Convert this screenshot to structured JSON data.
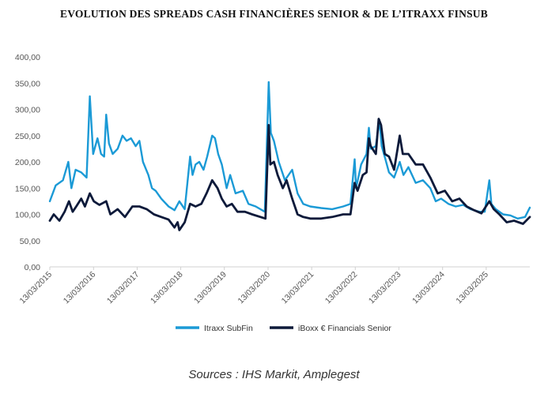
{
  "title": "EVOLUTION DES SPREADS CASH FINANCIÈRES SENIOR & DE L’ITRAXX FINSUB",
  "source": "Sources : IHS Markit, Amplegest",
  "colors": {
    "itraxx": "#1b9ad6",
    "iboxx": "#0d1a3a",
    "axis": "#d0d0d0",
    "tick_text": "#555555"
  },
  "chart_data": {
    "type": "line",
    "title": "EVOLUTION DES SPREADS CASH FINANCIÈRES SENIOR & DE L’ITRAXX FINSUB",
    "ylim": [
      0,
      400
    ],
    "y_ticks": [
      "0,00",
      "50,00",
      "100,00",
      "150,00",
      "200,00",
      "250,00",
      "300,00",
      "350,00",
      "400,00"
    ],
    "x_range": [
      "2015-03-13",
      "2026-03-13"
    ],
    "x_ticks": [
      "13/03/2015",
      "13/03/2016",
      "13/03/2017",
      "13/03/2018",
      "13/03/2019",
      "13/03/2020",
      "13/03/2021",
      "13/03/2022",
      "13/03/2023",
      "13/03/2024",
      "13/03/2025"
    ],
    "grid": false,
    "legend_position": "bottom",
    "series": [
      {
        "name": "Itraxx SubFin",
        "color": "#1b9ad6",
        "points": [
          [
            "2015-03-13",
            125
          ],
          [
            "2015-05-01",
            155
          ],
          [
            "2015-07-01",
            165
          ],
          [
            "2015-08-15",
            200
          ],
          [
            "2015-09-10",
            150
          ],
          [
            "2015-10-15",
            185
          ],
          [
            "2015-12-01",
            180
          ],
          [
            "2016-01-15",
            170
          ],
          [
            "2016-02-11",
            325
          ],
          [
            "2016-03-10",
            215
          ],
          [
            "2016-04-15",
            245
          ],
          [
            "2016-05-15",
            215
          ],
          [
            "2016-06-10",
            210
          ],
          [
            "2016-06-27",
            290
          ],
          [
            "2016-07-20",
            235
          ],
          [
            "2016-08-20",
            215
          ],
          [
            "2016-10-01",
            225
          ],
          [
            "2016-11-10",
            250
          ],
          [
            "2016-12-15",
            240
          ],
          [
            "2017-01-20",
            245
          ],
          [
            "2017-03-01",
            230
          ],
          [
            "2017-04-01",
            240
          ],
          [
            "2017-05-01",
            200
          ],
          [
            "2017-06-15",
            175
          ],
          [
            "2017-07-15",
            150
          ],
          [
            "2017-08-15",
            145
          ],
          [
            "2017-10-01",
            130
          ],
          [
            "2017-12-01",
            115
          ],
          [
            "2018-01-20",
            108
          ],
          [
            "2018-03-01",
            125
          ],
          [
            "2018-04-15",
            110
          ],
          [
            "2018-05-30",
            210
          ],
          [
            "2018-06-20",
            175
          ],
          [
            "2018-07-15",
            195
          ],
          [
            "2018-08-15",
            200
          ],
          [
            "2018-09-20",
            185
          ],
          [
            "2018-10-20",
            210
          ],
          [
            "2018-12-01",
            250
          ],
          [
            "2018-12-25",
            245
          ],
          [
            "2019-01-20",
            215
          ],
          [
            "2019-02-20",
            195
          ],
          [
            "2019-04-01",
            150
          ],
          [
            "2019-05-01",
            175
          ],
          [
            "2019-06-15",
            140
          ],
          [
            "2019-08-15",
            145
          ],
          [
            "2019-10-01",
            120
          ],
          [
            "2019-12-01",
            115
          ],
          [
            "2020-02-15",
            105
          ],
          [
            "2020-03-18",
            352
          ],
          [
            "2020-04-05",
            255
          ],
          [
            "2020-05-01",
            240
          ],
          [
            "2020-06-10",
            200
          ],
          [
            "2020-08-01",
            165
          ],
          [
            "2020-10-01",
            185
          ],
          [
            "2020-11-15",
            140
          ],
          [
            "2021-01-01",
            120
          ],
          [
            "2021-03-01",
            115
          ],
          [
            "2021-06-01",
            112
          ],
          [
            "2021-09-01",
            110
          ],
          [
            "2021-12-01",
            115
          ],
          [
            "2022-02-01",
            120
          ],
          [
            "2022-03-08",
            205
          ],
          [
            "2022-03-20",
            150
          ],
          [
            "2022-05-01",
            195
          ],
          [
            "2022-06-15",
            215
          ],
          [
            "2022-07-05",
            265
          ],
          [
            "2022-07-20",
            225
          ],
          [
            "2022-09-01",
            230
          ],
          [
            "2022-09-30",
            280
          ],
          [
            "2022-10-20",
            230
          ],
          [
            "2022-11-20",
            205
          ],
          [
            "2022-12-20",
            180
          ],
          [
            "2023-02-01",
            170
          ],
          [
            "2023-03-20",
            200
          ],
          [
            "2023-04-20",
            175
          ],
          [
            "2023-06-01",
            190
          ],
          [
            "2023-08-01",
            160
          ],
          [
            "2023-10-01",
            165
          ],
          [
            "2023-12-01",
            150
          ],
          [
            "2024-01-15",
            125
          ],
          [
            "2024-03-01",
            130
          ],
          [
            "2024-05-01",
            120
          ],
          [
            "2024-07-01",
            115
          ],
          [
            "2024-09-01",
            118
          ],
          [
            "2024-11-01",
            110
          ],
          [
            "2025-01-15",
            105
          ],
          [
            "2025-03-01",
            105
          ],
          [
            "2025-04-08",
            165
          ],
          [
            "2025-04-25",
            120
          ],
          [
            "2025-06-01",
            110
          ],
          [
            "2025-08-01",
            100
          ],
          [
            "2025-10-01",
            98
          ],
          [
            "2025-12-01",
            92
          ],
          [
            "2026-02-01",
            95
          ],
          [
            "2026-03-13",
            113
          ]
        ]
      },
      {
        "name": "iBoxx € Financials Senior",
        "color": "#0d1a3a",
        "points": [
          [
            "2015-03-13",
            88
          ],
          [
            "2015-04-15",
            100
          ],
          [
            "2015-06-01",
            88
          ],
          [
            "2015-07-15",
            105
          ],
          [
            "2015-08-20",
            125
          ],
          [
            "2015-09-20",
            105
          ],
          [
            "2015-10-20",
            115
          ],
          [
            "2015-12-01",
            130
          ],
          [
            "2016-01-01",
            115
          ],
          [
            "2016-02-11",
            140
          ],
          [
            "2016-03-15",
            125
          ],
          [
            "2016-05-01",
            118
          ],
          [
            "2016-06-27",
            125
          ],
          [
            "2016-08-01",
            100
          ],
          [
            "2016-10-01",
            110
          ],
          [
            "2016-12-01",
            95
          ],
          [
            "2017-02-01",
            115
          ],
          [
            "2017-04-01",
            115
          ],
          [
            "2017-06-01",
            110
          ],
          [
            "2017-08-01",
            100
          ],
          [
            "2017-10-01",
            95
          ],
          [
            "2017-12-01",
            90
          ],
          [
            "2018-01-20",
            75
          ],
          [
            "2018-02-15",
            85
          ],
          [
            "2018-03-01",
            70
          ],
          [
            "2018-04-15",
            85
          ],
          [
            "2018-05-30",
            120
          ],
          [
            "2018-07-15",
            115
          ],
          [
            "2018-09-01",
            120
          ],
          [
            "2018-10-15",
            140
          ],
          [
            "2018-12-01",
            165
          ],
          [
            "2019-01-15",
            150
          ],
          [
            "2019-02-20",
            130
          ],
          [
            "2019-04-01",
            115
          ],
          [
            "2019-05-15",
            120
          ],
          [
            "2019-07-01",
            105
          ],
          [
            "2019-09-01",
            105
          ],
          [
            "2019-11-01",
            100
          ],
          [
            "2020-02-20",
            92
          ],
          [
            "2020-03-18",
            270
          ],
          [
            "2020-04-01",
            195
          ],
          [
            "2020-05-01",
            200
          ],
          [
            "2020-06-01",
            175
          ],
          [
            "2020-07-15",
            150
          ],
          [
            "2020-08-15",
            165
          ],
          [
            "2020-10-01",
            130
          ],
          [
            "2020-11-15",
            100
          ],
          [
            "2021-01-01",
            95
          ],
          [
            "2021-03-01",
            92
          ],
          [
            "2021-06-01",
            92
          ],
          [
            "2021-09-01",
            95
          ],
          [
            "2021-12-01",
            100
          ],
          [
            "2022-02-01",
            100
          ],
          [
            "2022-03-08",
            160
          ],
          [
            "2022-04-01",
            145
          ],
          [
            "2022-05-15",
            175
          ],
          [
            "2022-06-15",
            180
          ],
          [
            "2022-07-05",
            245
          ],
          [
            "2022-07-20",
            230
          ],
          [
            "2022-09-01",
            215
          ],
          [
            "2022-09-25",
            282
          ],
          [
            "2022-10-15",
            270
          ],
          [
            "2022-11-15",
            215
          ],
          [
            "2022-12-20",
            210
          ],
          [
            "2023-02-01",
            185
          ],
          [
            "2023-03-20",
            250
          ],
          [
            "2023-04-15",
            215
          ],
          [
            "2023-06-01",
            215
          ],
          [
            "2023-08-01",
            195
          ],
          [
            "2023-10-01",
            195
          ],
          [
            "2023-12-01",
            170
          ],
          [
            "2024-02-01",
            140
          ],
          [
            "2024-04-01",
            145
          ],
          [
            "2024-06-01",
            125
          ],
          [
            "2024-08-01",
            130
          ],
          [
            "2024-10-01",
            115
          ],
          [
            "2024-12-01",
            108
          ],
          [
            "2025-02-01",
            102
          ],
          [
            "2025-04-08",
            125
          ],
          [
            "2025-05-15",
            110
          ],
          [
            "2025-07-01",
            100
          ],
          [
            "2025-09-01",
            85
          ],
          [
            "2025-11-01",
            88
          ],
          [
            "2026-01-15",
            82
          ],
          [
            "2026-03-13",
            95
          ]
        ]
      }
    ]
  }
}
